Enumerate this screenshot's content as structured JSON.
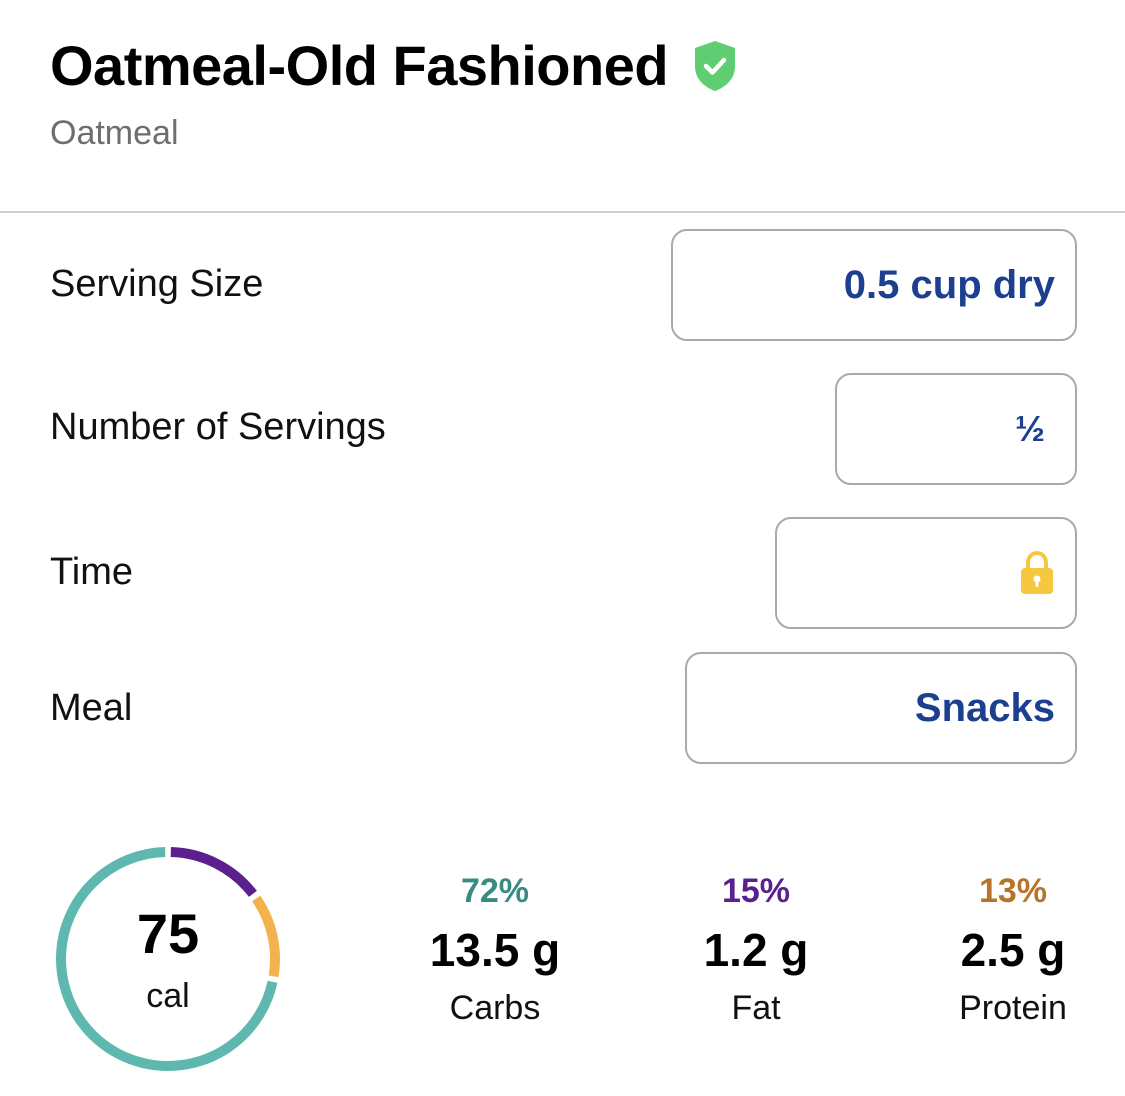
{
  "food": {
    "name": "Oatmeal-Old Fashioned",
    "brand": "Oatmeal"
  },
  "fields": {
    "serving_size_label": "Serving Size",
    "serving_size_value": "0.5 cup dry",
    "servings_label": "Number of Servings",
    "servings_value": "½",
    "time_label": "Time",
    "meal_label": "Meal",
    "meal_value": "Snacks"
  },
  "summary": {
    "calories": "75",
    "calories_unit": "cal",
    "macros": [
      {
        "percent": "72%",
        "grams": "13.5 g",
        "name": "Carbs",
        "fraction": 0.72,
        "color": "#5fb8b0"
      },
      {
        "percent": "15%",
        "grams": "1.2 g",
        "name": "Fat",
        "fraction": 0.15,
        "color": "#5c1f8e"
      },
      {
        "percent": "13%",
        "grams": "2.5 g",
        "name": "Protein",
        "fraction": 0.13,
        "color": "#f3b24d"
      }
    ]
  },
  "colors": {
    "accent_value": "#1d3f8f",
    "verified": "#5fce73",
    "lock": "#f6c840",
    "carbs_text": "#3a8a82",
    "fat_text": "#5c1f8e",
    "protein_text": "#b8732a"
  },
  "icons": {
    "verified": "verified-shield-icon",
    "lock": "lock-icon"
  }
}
